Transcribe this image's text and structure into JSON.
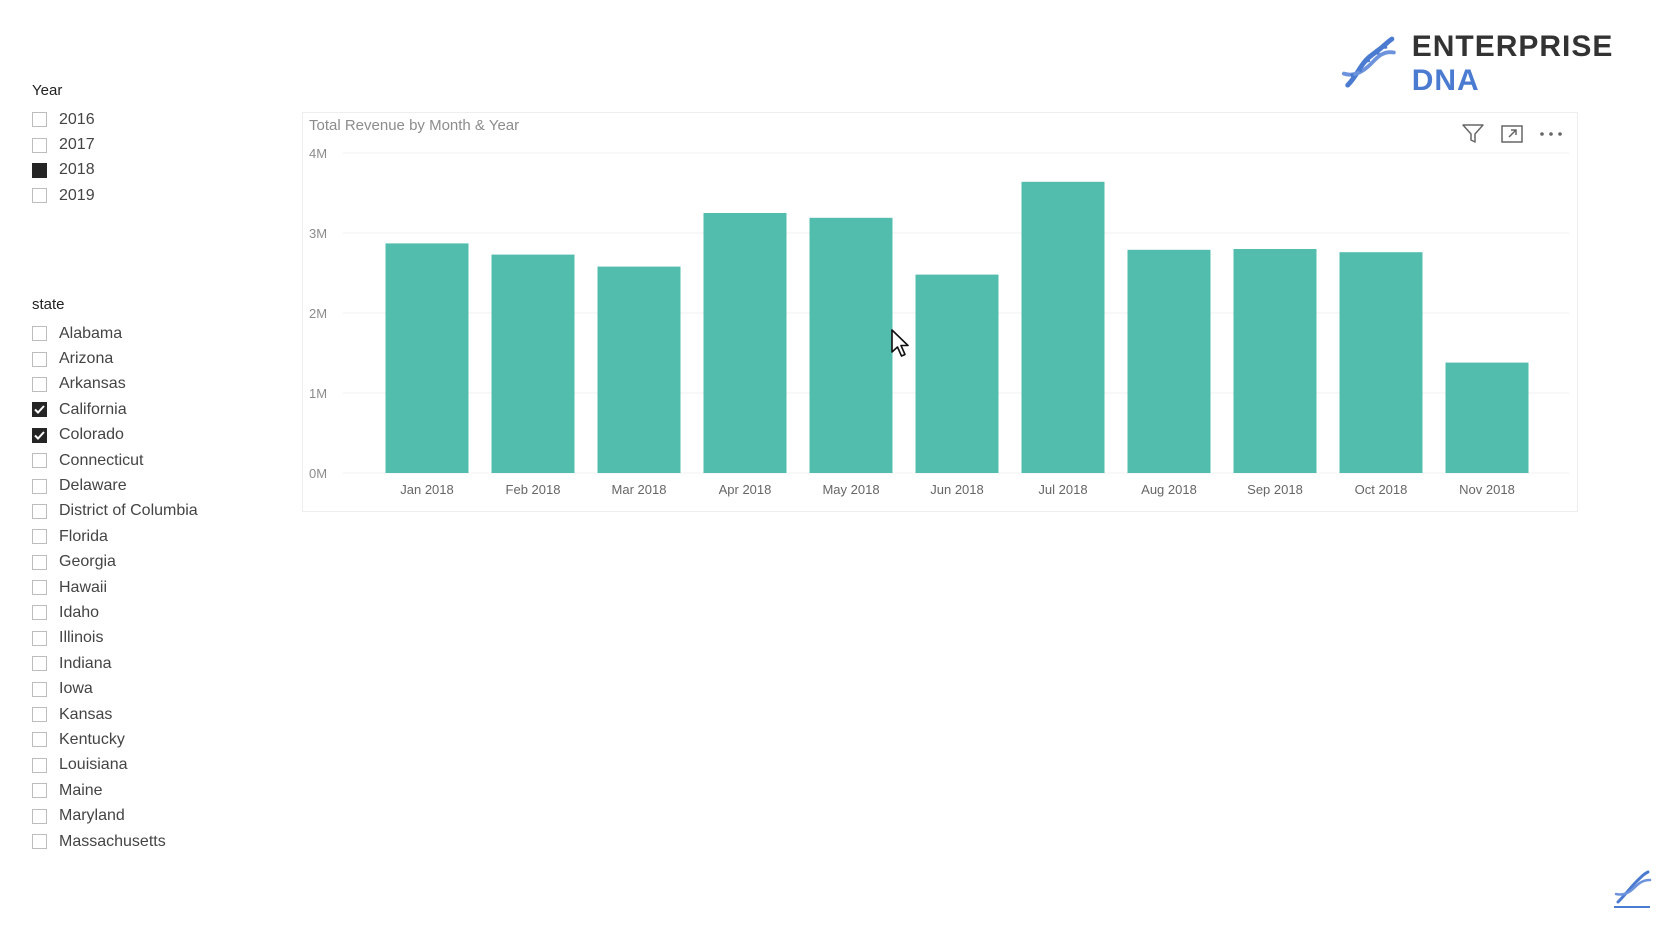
{
  "year_slicer": {
    "title": "Year",
    "items": [
      {
        "label": "2016",
        "state": "empty"
      },
      {
        "label": "2017",
        "state": "empty"
      },
      {
        "label": "2018",
        "state": "filled"
      },
      {
        "label": "2019",
        "state": "empty"
      }
    ]
  },
  "state_slicer": {
    "title": "state",
    "items": [
      {
        "label": "Alabama",
        "state": "empty"
      },
      {
        "label": "Arizona",
        "state": "empty"
      },
      {
        "label": "Arkansas",
        "state": "empty"
      },
      {
        "label": "California",
        "state": "checked"
      },
      {
        "label": "Colorado",
        "state": "checked"
      },
      {
        "label": "Connecticut",
        "state": "empty"
      },
      {
        "label": "Delaware",
        "state": "empty"
      },
      {
        "label": "District of Columbia",
        "state": "empty"
      },
      {
        "label": "Florida",
        "state": "empty"
      },
      {
        "label": "Georgia",
        "state": "empty"
      },
      {
        "label": "Hawaii",
        "state": "empty"
      },
      {
        "label": "Idaho",
        "state": "empty"
      },
      {
        "label": "Illinois",
        "state": "empty"
      },
      {
        "label": "Indiana",
        "state": "empty"
      },
      {
        "label": "Iowa",
        "state": "empty"
      },
      {
        "label": "Kansas",
        "state": "empty"
      },
      {
        "label": "Kentucky",
        "state": "empty"
      },
      {
        "label": "Louisiana",
        "state": "empty"
      },
      {
        "label": "Maine",
        "state": "empty"
      },
      {
        "label": "Maryland",
        "state": "empty"
      },
      {
        "label": "Massachusetts",
        "state": "empty"
      }
    ]
  },
  "logo": {
    "word1": "ENTERPRISE",
    "word2": "DNA",
    "icon": "dna-helix-icon",
    "accent": "#4a7bd0"
  },
  "toolbar_icons": [
    "filter-icon",
    "focus-mode-icon",
    "more-options-icon"
  ],
  "chart_data": {
    "type": "bar",
    "title": "Total Revenue by Month & Year",
    "categories": [
      "Jan 2018",
      "Feb 2018",
      "Mar 2018",
      "Apr 2018",
      "May 2018",
      "Jun 2018",
      "Jul 2018",
      "Aug 2018",
      "Sep 2018",
      "Oct 2018",
      "Nov 2018"
    ],
    "values": [
      2.87,
      2.73,
      2.58,
      3.25,
      3.19,
      2.48,
      3.64,
      2.79,
      2.8,
      2.76,
      1.38
    ],
    "unit": "M",
    "yticks": [
      "0M",
      "1M",
      "2M",
      "3M",
      "4M"
    ],
    "ylim": [
      0,
      4
    ],
    "grid": true,
    "legend": "none",
    "bar_color": "#52bcad"
  }
}
